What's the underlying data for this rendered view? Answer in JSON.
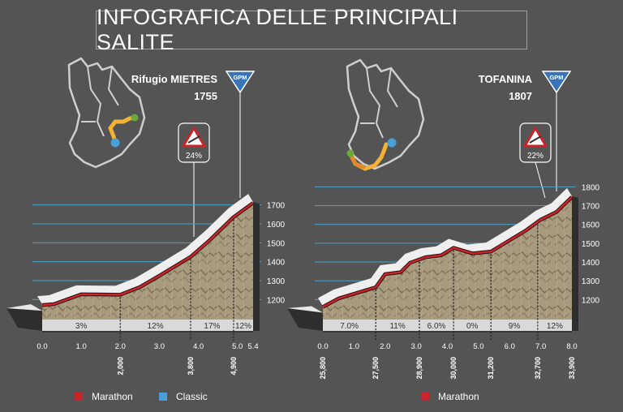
{
  "title": "INFOGRAFICA DELLE PRINCIPALI SALITE",
  "gpm_label": "GPM",
  "legend": [
    {
      "label": "Marathon",
      "color": "#c8262b"
    },
    {
      "label": "Classic",
      "color": "#4a9fd8"
    }
  ],
  "legend_right": {
    "label": "Marathon",
    "color": "#c8262b"
  },
  "chart_data": [
    {
      "type": "area",
      "name": "Rifugio MIETRES",
      "altitude": "1755",
      "max_gradient": "24%",
      "x_ticks": [
        "0.0",
        "1.0",
        "2.0",
        "3.0",
        "4.0",
        "5.0",
        "5.4"
      ],
      "y_ticks": [
        "1200",
        "1300",
        "1400",
        "1500",
        "1600",
        "1700"
      ],
      "ylim": [
        1150,
        1720
      ],
      "xlim": [
        0,
        5.4
      ],
      "race_km_labels": [
        "2,000",
        "3,800",
        "4,900"
      ],
      "race_km_positions": [
        2.0,
        3.8,
        4.9
      ],
      "segments": [
        {
          "from": 0,
          "to": 2.0,
          "label": "3%"
        },
        {
          "from": 2.0,
          "to": 3.8,
          "label": "12%"
        },
        {
          "from": 3.8,
          "to": 4.9,
          "label": "17%"
        },
        {
          "from": 4.9,
          "to": 5.4,
          "label": "12%"
        }
      ],
      "profile": [
        [
          0,
          1175
        ],
        [
          0.3,
          1180
        ],
        [
          1.0,
          1232
        ],
        [
          2.0,
          1230
        ],
        [
          2.5,
          1270
        ],
        [
          3.0,
          1330
        ],
        [
          3.8,
          1430
        ],
        [
          4.3,
          1520
        ],
        [
          4.9,
          1640
        ],
        [
          5.4,
          1715
        ]
      ]
    },
    {
      "type": "area",
      "name": "TOFANINA",
      "altitude": "1807",
      "max_gradient": "22%",
      "x_ticks": [
        "0.0",
        "1.0",
        "2.0",
        "3.0",
        "4.0",
        "5.0",
        "6.0",
        "7.0",
        "8.0"
      ],
      "y_ticks": [
        "1200",
        "1300",
        "1400",
        "1500",
        "1600",
        "1700",
        "1800"
      ],
      "ylim": [
        1150,
        1810
      ],
      "xlim": [
        0,
        8.0
      ],
      "race_km_labels": [
        "25,800",
        "27,500",
        "28,900",
        "30,000",
        "31,200",
        "32,700",
        "33,900"
      ],
      "race_km_positions": [
        0,
        1.7,
        3.1,
        4.2,
        5.4,
        6.9,
        8.0
      ],
      "segments": [
        {
          "from": 0,
          "to": 1.7,
          "label": "7.0%"
        },
        {
          "from": 1.7,
          "to": 3.1,
          "label": "11%"
        },
        {
          "from": 3.1,
          "to": 4.2,
          "label": "6.0%"
        },
        {
          "from": 4.2,
          "to": 5.4,
          "label": "0%"
        },
        {
          "from": 5.4,
          "to": 6.9,
          "label": "9%"
        },
        {
          "from": 6.9,
          "to": 8.0,
          "label": "12%"
        }
      ],
      "profile": [
        [
          0,
          1165
        ],
        [
          0.5,
          1210
        ],
        [
          1.7,
          1270
        ],
        [
          2.0,
          1340
        ],
        [
          2.5,
          1350
        ],
        [
          2.8,
          1400
        ],
        [
          3.3,
          1430
        ],
        [
          3.8,
          1440
        ],
        [
          4.2,
          1480
        ],
        [
          4.8,
          1450
        ],
        [
          5.4,
          1460
        ],
        [
          5.8,
          1500
        ],
        [
          6.5,
          1570
        ],
        [
          7.0,
          1630
        ],
        [
          7.5,
          1670
        ],
        [
          8.0,
          1750
        ]
      ]
    }
  ]
}
